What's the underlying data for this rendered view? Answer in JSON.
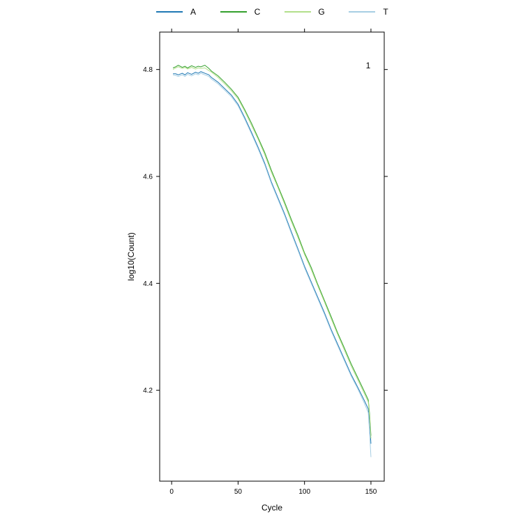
{
  "chart_data": {
    "type": "line",
    "panel_label": "1",
    "xlabel": "Cycle",
    "ylabel": "log10(Count)",
    "xlim": [
      -9,
      160
    ],
    "ylim": [
      4.03,
      4.87
    ],
    "xticks": [
      0,
      50,
      100,
      150
    ],
    "yticks": [
      4.2,
      4.4,
      4.6,
      4.8
    ],
    "ytick_labels": [
      "4.2",
      "4.4",
      "4.6",
      "4.8"
    ],
    "legend_position": "top",
    "series": [
      {
        "name": "A",
        "color": "#1f78b4",
        "x": [
          1,
          3,
          5,
          8,
          10,
          12,
          15,
          18,
          20,
          22,
          25,
          28,
          30,
          35,
          40,
          45,
          50,
          55,
          60,
          65,
          70,
          75,
          80,
          85,
          90,
          95,
          100,
          105,
          110,
          115,
          120,
          125,
          130,
          135,
          140,
          145,
          148,
          149,
          150
        ],
        "y": [
          4.792,
          4.792,
          4.79,
          4.793,
          4.79,
          4.794,
          4.791,
          4.795,
          4.793,
          4.796,
          4.793,
          4.79,
          4.785,
          4.776,
          4.764,
          4.752,
          4.735,
          4.71,
          4.683,
          4.655,
          4.625,
          4.59,
          4.56,
          4.53,
          4.497,
          4.465,
          4.432,
          4.403,
          4.374,
          4.345,
          4.314,
          4.286,
          4.258,
          4.23,
          4.206,
          4.181,
          4.165,
          4.14,
          4.1
        ]
      },
      {
        "name": "C",
        "color": "#33a02c",
        "x": [
          1,
          3,
          5,
          8,
          10,
          12,
          15,
          18,
          20,
          22,
          25,
          28,
          30,
          35,
          40,
          45,
          50,
          55,
          60,
          65,
          70,
          75,
          80,
          85,
          90,
          95,
          100,
          105,
          110,
          115,
          120,
          125,
          130,
          135,
          140,
          145,
          148,
          149,
          150
        ],
        "y": [
          4.803,
          4.805,
          4.808,
          4.804,
          4.806,
          4.803,
          4.807,
          4.804,
          4.806,
          4.805,
          4.808,
          4.802,
          4.797,
          4.788,
          4.776,
          4.763,
          4.748,
          4.725,
          4.7,
          4.673,
          4.645,
          4.612,
          4.582,
          4.552,
          4.52,
          4.49,
          4.457,
          4.43,
          4.398,
          4.368,
          4.338,
          4.307,
          4.279,
          4.25,
          4.224,
          4.198,
          4.182,
          4.155,
          4.115
        ]
      },
      {
        "name": "G",
        "color": "#b2df8a",
        "x": [
          1,
          3,
          5,
          8,
          10,
          12,
          15,
          18,
          20,
          22,
          25,
          28,
          30,
          35,
          40,
          45,
          50,
          55,
          60,
          65,
          70,
          75,
          80,
          85,
          90,
          95,
          100,
          105,
          110,
          115,
          120,
          125,
          130,
          135,
          140,
          145,
          148,
          149,
          150
        ],
        "y": [
          4.8,
          4.803,
          4.805,
          4.802,
          4.804,
          4.801,
          4.804,
          4.801,
          4.803,
          4.802,
          4.803,
          4.798,
          4.795,
          4.785,
          4.773,
          4.76,
          4.745,
          4.722,
          4.696,
          4.67,
          4.641,
          4.608,
          4.579,
          4.548,
          4.516,
          4.486,
          4.454,
          4.426,
          4.395,
          4.365,
          4.334,
          4.304,
          4.275,
          4.246,
          4.22,
          4.194,
          4.178,
          4.15,
          4.11
        ]
      },
      {
        "name": "T",
        "color": "#a6cee3",
        "x": [
          1,
          3,
          5,
          8,
          10,
          12,
          15,
          18,
          20,
          22,
          25,
          28,
          30,
          35,
          40,
          45,
          50,
          55,
          60,
          65,
          70,
          75,
          80,
          85,
          90,
          95,
          100,
          105,
          110,
          115,
          120,
          125,
          130,
          135,
          140,
          145,
          148,
          149,
          150
        ],
        "y": [
          4.79,
          4.789,
          4.787,
          4.79,
          4.787,
          4.791,
          4.788,
          4.792,
          4.79,
          4.793,
          4.79,
          4.787,
          4.782,
          4.773,
          4.761,
          4.749,
          4.732,
          4.707,
          4.68,
          4.652,
          4.622,
          4.587,
          4.557,
          4.527,
          4.494,
          4.462,
          4.429,
          4.4,
          4.371,
          4.342,
          4.311,
          4.283,
          4.255,
          4.227,
          4.203,
          4.176,
          4.158,
          4.12,
          4.075
        ]
      }
    ]
  }
}
